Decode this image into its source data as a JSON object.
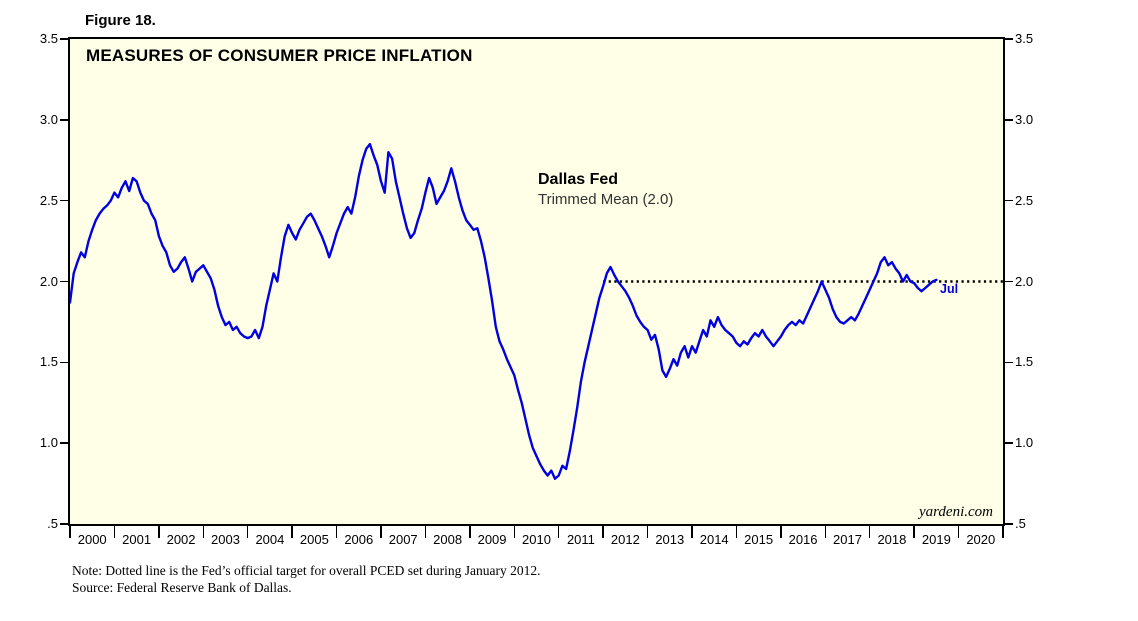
{
  "figure_label": "Figure 18.",
  "chart": {
    "title": "MEASURES OF CONSUMER PRICE INFLATION",
    "annotation": {
      "line1": "Dallas Fed",
      "line2": "Trimmed Mean (2.0)"
    },
    "point_label": "Jul",
    "watermark": "yardeni.com",
    "colors": {
      "line": "#0000E0",
      "target": "#000000",
      "plot_bg": "#FFFFE8",
      "border": "#000000"
    }
  },
  "notes": {
    "line1": "Note: Dotted line is the Fed’s official target for overall PCED set during January 2012.",
    "line2": "Source: Federal Reserve Bank of Dallas."
  },
  "chart_data": {
    "type": "line",
    "title": "MEASURES OF CONSUMER PRICE INFLATION",
    "xlabel": "",
    "ylabel": "",
    "xlim": [
      2000,
      2021
    ],
    "ylim": [
      0.5,
      3.5
    ],
    "grid": false,
    "legend_position": "none",
    "y_ticks": [
      0.5,
      1.0,
      1.5,
      2.0,
      2.5,
      3.0,
      3.5
    ],
    "y_tick_labels": [
      ".5",
      "1.0",
      "1.5",
      "2.0",
      "2.5",
      "3.0",
      "3.5"
    ],
    "x_tick_years": [
      2000,
      2001,
      2002,
      2003,
      2004,
      2005,
      2006,
      2007,
      2008,
      2009,
      2010,
      2011,
      2012,
      2013,
      2014,
      2015,
      2016,
      2017,
      2018,
      2019,
      2020
    ],
    "target_line": {
      "value": 2.0,
      "x_start": 2012.0,
      "x_end": 2021.0,
      "style": "dotted",
      "label": "Fed’s official target for overall PCED set during January 2012"
    },
    "series": [
      {
        "name": "Dallas Fed Trimmed Mean (2.0)",
        "start_year": 2000,
        "frequency": "monthly",
        "last_point_label": "Jul",
        "values": [
          1.87,
          2.05,
          2.12,
          2.18,
          2.15,
          2.25,
          2.32,
          2.38,
          2.42,
          2.45,
          2.47,
          2.5,
          2.55,
          2.52,
          2.58,
          2.62,
          2.56,
          2.64,
          2.62,
          2.55,
          2.5,
          2.48,
          2.42,
          2.38,
          2.28,
          2.22,
          2.18,
          2.1,
          2.06,
          2.08,
          2.12,
          2.15,
          2.08,
          2.0,
          2.06,
          2.08,
          2.1,
          2.06,
          2.02,
          1.95,
          1.85,
          1.78,
          1.73,
          1.75,
          1.7,
          1.72,
          1.68,
          1.66,
          1.65,
          1.66,
          1.7,
          1.65,
          1.72,
          1.85,
          1.95,
          2.05,
          2.0,
          2.15,
          2.28,
          2.35,
          2.3,
          2.26,
          2.32,
          2.36,
          2.4,
          2.42,
          2.38,
          2.33,
          2.28,
          2.22,
          2.15,
          2.22,
          2.3,
          2.36,
          2.42,
          2.46,
          2.42,
          2.52,
          2.65,
          2.75,
          2.82,
          2.85,
          2.78,
          2.72,
          2.62,
          2.55,
          2.8,
          2.76,
          2.62,
          2.52,
          2.42,
          2.33,
          2.27,
          2.3,
          2.38,
          2.45,
          2.55,
          2.64,
          2.58,
          2.48,
          2.52,
          2.56,
          2.62,
          2.7,
          2.62,
          2.52,
          2.44,
          2.38,
          2.35,
          2.32,
          2.33,
          2.25,
          2.15,
          2.02,
          1.88,
          1.72,
          1.63,
          1.58,
          1.52,
          1.47,
          1.42,
          1.33,
          1.25,
          1.15,
          1.05,
          0.97,
          0.92,
          0.87,
          0.83,
          0.8,
          0.83,
          0.78,
          0.8,
          0.86,
          0.84,
          0.95,
          1.08,
          1.22,
          1.38,
          1.5,
          1.6,
          1.7,
          1.8,
          1.9,
          1.97,
          2.05,
          2.09,
          2.04,
          2.0,
          1.97,
          1.94,
          1.9,
          1.85,
          1.79,
          1.75,
          1.72,
          1.7,
          1.64,
          1.67,
          1.58,
          1.45,
          1.41,
          1.46,
          1.52,
          1.48,
          1.56,
          1.6,
          1.53,
          1.6,
          1.56,
          1.63,
          1.7,
          1.66,
          1.76,
          1.72,
          1.78,
          1.73,
          1.7,
          1.68,
          1.66,
          1.62,
          1.6,
          1.63,
          1.61,
          1.65,
          1.68,
          1.66,
          1.7,
          1.66,
          1.63,
          1.6,
          1.63,
          1.66,
          1.7,
          1.73,
          1.75,
          1.73,
          1.76,
          1.74,
          1.79,
          1.84,
          1.89,
          1.94,
          2.0,
          1.95,
          1.9,
          1.83,
          1.78,
          1.75,
          1.74,
          1.76,
          1.78,
          1.76,
          1.8,
          1.85,
          1.9,
          1.95,
          2.0,
          2.05,
          2.12,
          2.15,
          2.1,
          2.12,
          2.08,
          2.05,
          2.0,
          2.04,
          2.0,
          1.99,
          1.96,
          1.94,
          1.96,
          1.98,
          2.0,
          2.01
        ]
      }
    ]
  }
}
